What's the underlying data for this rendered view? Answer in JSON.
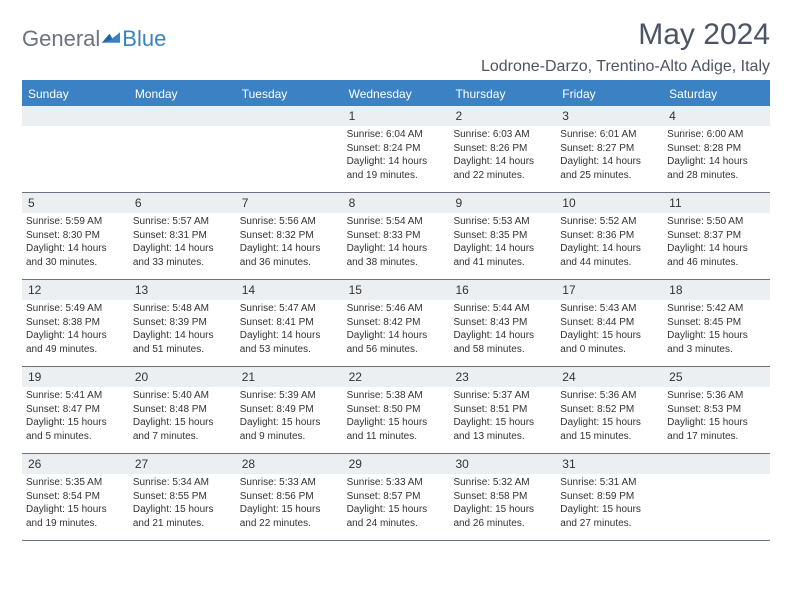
{
  "brand": {
    "text1": "General",
    "text2": "Blue"
  },
  "title": "May 2024",
  "location": "Lodrone-Darzo, Trentino-Alto Adige, Italy",
  "colors": {
    "accent": "#3b82c4",
    "headerText": "#ffffff",
    "dayNumBg": "#eceff1",
    "bodyText": "#333333",
    "titleText": "#4b5563",
    "logoGray": "#6b7280"
  },
  "weekdays": [
    "Sunday",
    "Monday",
    "Tuesday",
    "Wednesday",
    "Thursday",
    "Friday",
    "Saturday"
  ],
  "weeks": [
    [
      {
        "n": "",
        "sr": "",
        "ss": "",
        "dl": ""
      },
      {
        "n": "",
        "sr": "",
        "ss": "",
        "dl": ""
      },
      {
        "n": "",
        "sr": "",
        "ss": "",
        "dl": ""
      },
      {
        "n": "1",
        "sr": "6:04 AM",
        "ss": "8:24 PM",
        "dl": "14 hours and 19 minutes."
      },
      {
        "n": "2",
        "sr": "6:03 AM",
        "ss": "8:26 PM",
        "dl": "14 hours and 22 minutes."
      },
      {
        "n": "3",
        "sr": "6:01 AM",
        "ss": "8:27 PM",
        "dl": "14 hours and 25 minutes."
      },
      {
        "n": "4",
        "sr": "6:00 AM",
        "ss": "8:28 PM",
        "dl": "14 hours and 28 minutes."
      }
    ],
    [
      {
        "n": "5",
        "sr": "5:59 AM",
        "ss": "8:30 PM",
        "dl": "14 hours and 30 minutes."
      },
      {
        "n": "6",
        "sr": "5:57 AM",
        "ss": "8:31 PM",
        "dl": "14 hours and 33 minutes."
      },
      {
        "n": "7",
        "sr": "5:56 AM",
        "ss": "8:32 PM",
        "dl": "14 hours and 36 minutes."
      },
      {
        "n": "8",
        "sr": "5:54 AM",
        "ss": "8:33 PM",
        "dl": "14 hours and 38 minutes."
      },
      {
        "n": "9",
        "sr": "5:53 AM",
        "ss": "8:35 PM",
        "dl": "14 hours and 41 minutes."
      },
      {
        "n": "10",
        "sr": "5:52 AM",
        "ss": "8:36 PM",
        "dl": "14 hours and 44 minutes."
      },
      {
        "n": "11",
        "sr": "5:50 AM",
        "ss": "8:37 PM",
        "dl": "14 hours and 46 minutes."
      }
    ],
    [
      {
        "n": "12",
        "sr": "5:49 AM",
        "ss": "8:38 PM",
        "dl": "14 hours and 49 minutes."
      },
      {
        "n": "13",
        "sr": "5:48 AM",
        "ss": "8:39 PM",
        "dl": "14 hours and 51 minutes."
      },
      {
        "n": "14",
        "sr": "5:47 AM",
        "ss": "8:41 PM",
        "dl": "14 hours and 53 minutes."
      },
      {
        "n": "15",
        "sr": "5:46 AM",
        "ss": "8:42 PM",
        "dl": "14 hours and 56 minutes."
      },
      {
        "n": "16",
        "sr": "5:44 AM",
        "ss": "8:43 PM",
        "dl": "14 hours and 58 minutes."
      },
      {
        "n": "17",
        "sr": "5:43 AM",
        "ss": "8:44 PM",
        "dl": "15 hours and 0 minutes."
      },
      {
        "n": "18",
        "sr": "5:42 AM",
        "ss": "8:45 PM",
        "dl": "15 hours and 3 minutes."
      }
    ],
    [
      {
        "n": "19",
        "sr": "5:41 AM",
        "ss": "8:47 PM",
        "dl": "15 hours and 5 minutes."
      },
      {
        "n": "20",
        "sr": "5:40 AM",
        "ss": "8:48 PM",
        "dl": "15 hours and 7 minutes."
      },
      {
        "n": "21",
        "sr": "5:39 AM",
        "ss": "8:49 PM",
        "dl": "15 hours and 9 minutes."
      },
      {
        "n": "22",
        "sr": "5:38 AM",
        "ss": "8:50 PM",
        "dl": "15 hours and 11 minutes."
      },
      {
        "n": "23",
        "sr": "5:37 AM",
        "ss": "8:51 PM",
        "dl": "15 hours and 13 minutes."
      },
      {
        "n": "24",
        "sr": "5:36 AM",
        "ss": "8:52 PM",
        "dl": "15 hours and 15 minutes."
      },
      {
        "n": "25",
        "sr": "5:36 AM",
        "ss": "8:53 PM",
        "dl": "15 hours and 17 minutes."
      }
    ],
    [
      {
        "n": "26",
        "sr": "5:35 AM",
        "ss": "8:54 PM",
        "dl": "15 hours and 19 minutes."
      },
      {
        "n": "27",
        "sr": "5:34 AM",
        "ss": "8:55 PM",
        "dl": "15 hours and 21 minutes."
      },
      {
        "n": "28",
        "sr": "5:33 AM",
        "ss": "8:56 PM",
        "dl": "15 hours and 22 minutes."
      },
      {
        "n": "29",
        "sr": "5:33 AM",
        "ss": "8:57 PM",
        "dl": "15 hours and 24 minutes."
      },
      {
        "n": "30",
        "sr": "5:32 AM",
        "ss": "8:58 PM",
        "dl": "15 hours and 26 minutes."
      },
      {
        "n": "31",
        "sr": "5:31 AM",
        "ss": "8:59 PM",
        "dl": "15 hours and 27 minutes."
      },
      {
        "n": "",
        "sr": "",
        "ss": "",
        "dl": ""
      }
    ]
  ],
  "labels": {
    "sunrise": "Sunrise:",
    "sunset": "Sunset:",
    "daylight": "Daylight:"
  }
}
